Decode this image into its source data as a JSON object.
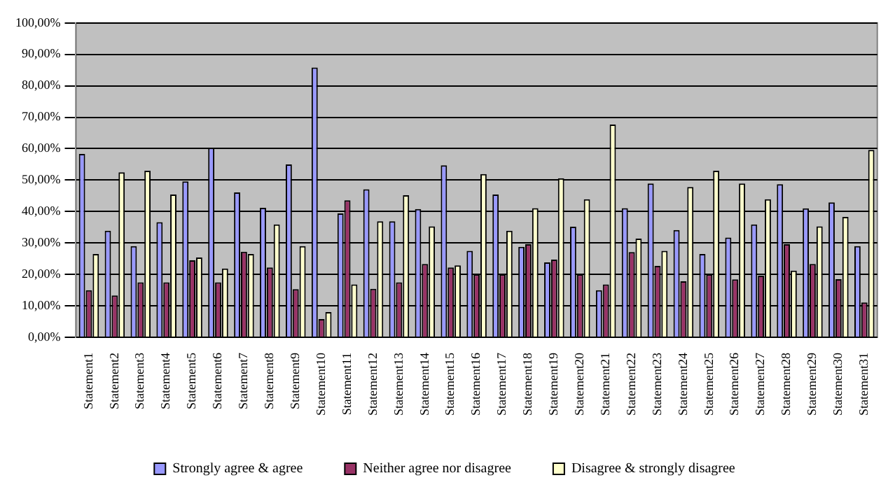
{
  "chart_data": {
    "type": "bar",
    "categories": [
      "Statement1",
      "Statement2",
      "Statement3",
      "Statement4",
      "Statement5",
      "Statement6",
      "Statement7",
      "Statement8",
      "Statement9",
      "Statement10",
      "Statement11",
      "Statement12",
      "Statement13",
      "Statement14",
      "Statement15",
      "Statement16",
      "Statement17",
      "Statement18",
      "Statement19",
      "Statement20",
      "Statement21",
      "Statement22",
      "Statement23",
      "Statement24",
      "Statement25",
      "Statement26",
      "Statement27",
      "Statement28",
      "Statement29",
      "Statement30",
      "Statement31"
    ],
    "series": [
      {
        "name": "Strongly agree & agree",
        "color": "#9999ff",
        "values": [
          58.3,
          33.9,
          29,
          36.6,
          49.6,
          60.3,
          46.1,
          41.2,
          55,
          85.8,
          39.4,
          47.1,
          36.9,
          40.8,
          54.7,
          27.5,
          45.4,
          28.8,
          23.8,
          35.2,
          15,
          41.1,
          48.9,
          34.1,
          26.5,
          31.7,
          35.9,
          48.7,
          41,
          42.9,
          29
        ]
      },
      {
        "name": "Neither agree nor disagree",
        "color": "#993366",
        "values": [
          15,
          13.3,
          17.5,
          17.5,
          24.5,
          17.5,
          27.2,
          22.2,
          15.3,
          5.8,
          43.6,
          15.4,
          17.5,
          23.3,
          22.2,
          20,
          20,
          29.6,
          24.7,
          20,
          16.8,
          27.1,
          22.7,
          17.8,
          20,
          18.4,
          19.6,
          29.6,
          23.3,
          18.5,
          11.1
        ]
      },
      {
        "name": "Disagree & strongly disagree",
        "color": "#ffffcc",
        "values": [
          26.5,
          52.5,
          53,
          45.4,
          25.4,
          21.9,
          26.5,
          35.9,
          29,
          8,
          16.8,
          36.9,
          45.2,
          35.3,
          22.9,
          51.9,
          33.9,
          41.1,
          50.6,
          43.9,
          67.7,
          31.4,
          27.5,
          47.8,
          53,
          48.9,
          43.9,
          21.2,
          35.3,
          38.3,
          59.6
        ]
      }
    ],
    "ylim": [
      0,
      100
    ],
    "yticks": [
      {
        "value": 0,
        "label": "0,00%"
      },
      {
        "value": 10,
        "label": "10,00%"
      },
      {
        "value": 20,
        "label": "20,00%"
      },
      {
        "value": 30,
        "label": "30,00%"
      },
      {
        "value": 40,
        "label": "40,00%"
      },
      {
        "value": 50,
        "label": "50,00%"
      },
      {
        "value": 60,
        "label": "60,00%"
      },
      {
        "value": 70,
        "label": "70,00%"
      },
      {
        "value": 80,
        "label": "80,00%"
      },
      {
        "value": 90,
        "label": "90,00%"
      },
      {
        "value": 100,
        "label": "100,00%"
      }
    ],
    "grid": "y",
    "legend": "bottom"
  }
}
